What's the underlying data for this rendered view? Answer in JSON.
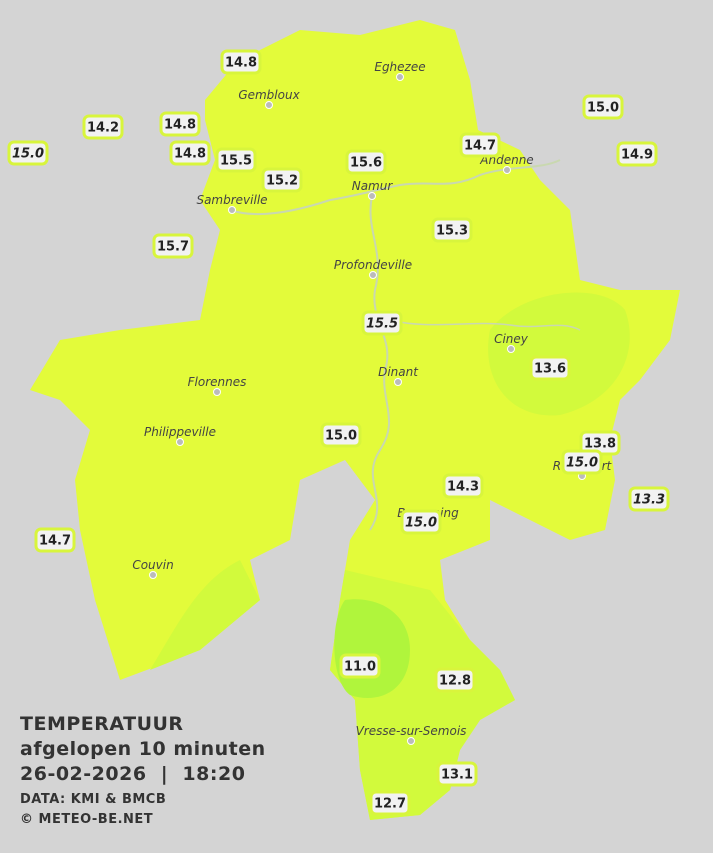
{
  "title": "TEMPERATUUR",
  "subtitle": "afgelopen 10 minuten",
  "datetime": "26-02-2026  |  18:20",
  "source": "DATA: KMI & BMCB",
  "credit": "© METEO-BE.NET",
  "cities": [
    "Eghezee",
    "Gembloux",
    "Andenne",
    "Namur",
    "Sambreville",
    "Profondeville",
    "Ciney",
    "Dinant",
    "Florennes",
    "Philippeville",
    "Rochefort",
    "Beauraing",
    "Couvin",
    "Vresse-sur-Semois"
  ],
  "stations": [
    {
      "value": "14.8",
      "italic": false
    },
    {
      "value": "14.2",
      "italic": false
    },
    {
      "value": "14.8",
      "italic": false
    },
    {
      "value": "15.0",
      "italic": true
    },
    {
      "value": "14.8",
      "italic": false
    },
    {
      "value": "15.5",
      "italic": false
    },
    {
      "value": "15.2",
      "italic": false
    },
    {
      "value": "15.6",
      "italic": false
    },
    {
      "value": "14.7",
      "italic": false
    },
    {
      "value": "15.0",
      "italic": false
    },
    {
      "value": "14.9",
      "italic": false
    },
    {
      "value": "15.3",
      "italic": false
    },
    {
      "value": "15.7",
      "italic": false
    },
    {
      "value": "15.5",
      "italic": true
    },
    {
      "value": "13.6",
      "italic": false
    },
    {
      "value": "15.0",
      "italic": false
    },
    {
      "value": "13.8",
      "italic": false
    },
    {
      "value": "15.0",
      "italic": true
    },
    {
      "value": "14.3",
      "italic": false
    },
    {
      "value": "13.3",
      "italic": true
    },
    {
      "value": "15.0",
      "italic": true
    },
    {
      "value": "14.7",
      "italic": false
    },
    {
      "value": "11.0",
      "italic": false
    },
    {
      "value": "12.8",
      "italic": false
    },
    {
      "value": "13.1",
      "italic": false
    },
    {
      "value": "12.7",
      "italic": false
    }
  ]
}
